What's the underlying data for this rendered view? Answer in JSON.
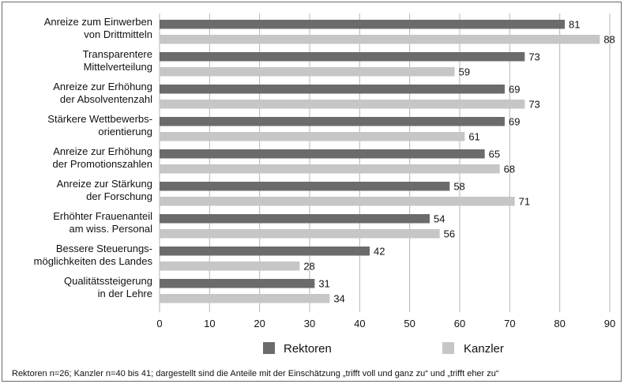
{
  "chart_data": {
    "type": "bar",
    "orientation": "horizontal",
    "categories": [
      [
        "Anreize zum Einwerben",
        "von Drittmitteln"
      ],
      [
        "Transparentere",
        "Mittelverteilung"
      ],
      [
        "Anreize zur Erhöhung",
        "der Absolventenzahl"
      ],
      [
        "Stärkere Wettbewerbs-",
        "orientierung"
      ],
      [
        "Anreize zur Erhöhung",
        "der Promotionszahlen"
      ],
      [
        "Anreize zur Stärkung",
        "der Forschung"
      ],
      [
        "Erhöhter Frauenanteil",
        "am wiss. Personal"
      ],
      [
        "Bessere Steuerungs-",
        "möglichkeiten des Landes"
      ],
      [
        "Qualitätssteigerung",
        "in der Lehre"
      ]
    ],
    "series": [
      {
        "name": "Rektoren",
        "color": "#6b6b6b",
        "values": [
          81,
          73,
          69,
          69,
          65,
          58,
          54,
          42,
          31
        ]
      },
      {
        "name": "Kanzler",
        "color": "#c6c6c6",
        "values": [
          88,
          59,
          73,
          61,
          68,
          71,
          56,
          28,
          34
        ]
      }
    ],
    "xlim": [
      0,
      90
    ],
    "xticks": [
      0,
      10,
      20,
      30,
      40,
      50,
      60,
      70,
      80,
      90
    ],
    "grid": true,
    "legend_position": "bottom",
    "data_labels": true
  },
  "footnote": "Rektoren n=26; Kanzler n=40 bis 41; dargestellt sind die Anteile mit der Einschätzung „trifft voll und ganz zu“ und „trifft eher zu“"
}
